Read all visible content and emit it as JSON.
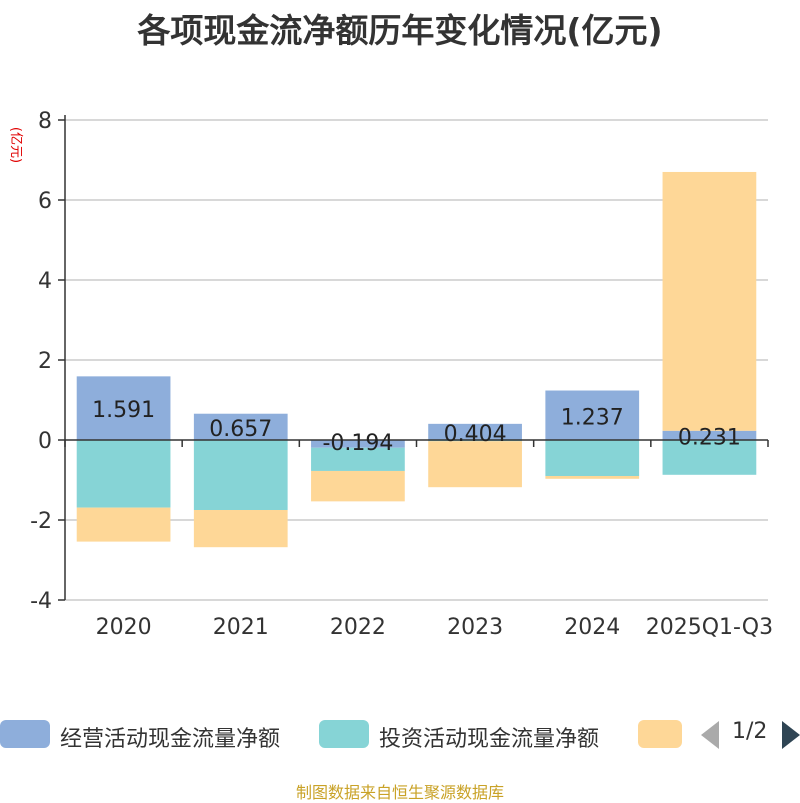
{
  "title": "各项现金流净额历年变化情况(亿元)",
  "source_note": "制图数据来自恒生聚源数据库",
  "pager": "1/2",
  "chart_data": {
    "type": "bar",
    "stacked": true,
    "title": "各项现金流净额历年变化情况(亿元)",
    "ylabel": "(亿元)",
    "ylim": [
      -4,
      8
    ],
    "yticks": [
      -4,
      -2,
      0,
      2,
      4,
      6,
      8
    ],
    "grid": true,
    "legend_position": "bottom",
    "categories": [
      "2020",
      "2021",
      "2022",
      "2023",
      "2024",
      "2025Q1-Q3"
    ],
    "series": [
      {
        "name": "经营活动现金流量净额",
        "color": "#8eaedb",
        "values": [
          1.591,
          0.657,
          -0.194,
          0.404,
          1.237,
          0.231
        ],
        "labels": [
          "1.591",
          "0.657",
          "-0.194",
          "0.404",
          "1.237",
          "0.231"
        ]
      },
      {
        "name": "投资活动现金流量净额",
        "color": "#86d4d6",
        "values": [
          -1.69,
          -1.75,
          -0.58,
          -0.03,
          -0.9,
          -0.87
        ]
      },
      {
        "name": "",
        "color": "#fed797",
        "values": [
          -0.85,
          -0.93,
          -0.76,
          -1.15,
          -0.07,
          6.47
        ]
      }
    ]
  }
}
